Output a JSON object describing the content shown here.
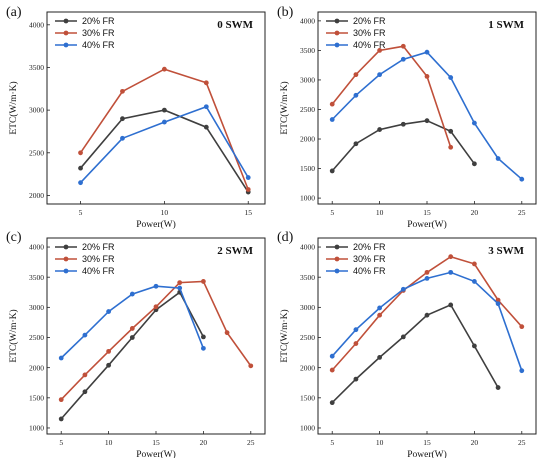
{
  "colors": {
    "s20": "#3f3f3f",
    "s30": "#c0503a",
    "s40": "#2e6fd0",
    "axis": "#222222"
  },
  "chart_data": [
    {
      "type": "line",
      "panel_label": "(a)",
      "title": "0 SWM",
      "xlabel": "Power(W)",
      "ylabel": "ETC(W/m·K)",
      "xlim": [
        3,
        16
      ],
      "ylim": [
        1900,
        4150
      ],
      "xticks": [
        5,
        10,
        15
      ],
      "yticks": [
        2000,
        2500,
        3000,
        3500,
        4000
      ],
      "x": [
        5,
        7.5,
        10,
        12.5,
        15
      ],
      "legend_position": "top-left",
      "series": [
        {
          "name": "20% FR",
          "color_key": "s20",
          "values": [
            2320,
            2900,
            3000,
            2800,
            2040
          ]
        },
        {
          "name": "30% FR",
          "color_key": "s30",
          "values": [
            2500,
            3220,
            3480,
            3320,
            2070
          ]
        },
        {
          "name": "40% FR",
          "color_key": "s40",
          "values": [
            2150,
            2670,
            2860,
            3040,
            2210
          ]
        }
      ]
    },
    {
      "type": "line",
      "panel_label": "(b)",
      "title": "1 SWM",
      "xlabel": "Power(W)",
      "ylabel": "ETC(W/m·K)",
      "xlim": [
        3.5,
        26.5
      ],
      "ylim": [
        900,
        4150
      ],
      "xticks": [
        5,
        10,
        15,
        20,
        25
      ],
      "yticks": [
        1000,
        1500,
        2000,
        2500,
        3000,
        3500,
        4000
      ],
      "x": [
        5,
        7.5,
        10,
        12.5,
        15,
        17.5,
        20,
        22.5,
        25
      ],
      "legend_position": "top-left",
      "series": [
        {
          "name": "20% FR",
          "color_key": "s20",
          "values": [
            1460,
            1920,
            2160,
            2250,
            2310,
            2130,
            1580,
            null,
            null
          ]
        },
        {
          "name": "30% FR",
          "color_key": "s30",
          "values": [
            2590,
            3090,
            3500,
            3570,
            3060,
            1860,
            null,
            null,
            null
          ]
        },
        {
          "name": "40% FR",
          "color_key": "s40",
          "values": [
            2330,
            2740,
            3090,
            3350,
            3470,
            3040,
            2270,
            1670,
            1320
          ]
        }
      ]
    },
    {
      "type": "line",
      "panel_label": "(c)",
      "title": "2 SWM",
      "xlabel": "Power(W)",
      "ylabel": "ETC(W/m·K)",
      "xlim": [
        3.5,
        26.5
      ],
      "ylim": [
        900,
        4150
      ],
      "xticks": [
        5,
        10,
        15,
        20,
        25
      ],
      "yticks": [
        1000,
        1500,
        2000,
        2500,
        3000,
        3500,
        4000
      ],
      "x": [
        5,
        7.5,
        10,
        12.5,
        15,
        17.5,
        20,
        22.5,
        25
      ],
      "legend_position": "top-left",
      "series": [
        {
          "name": "20% FR",
          "color_key": "s20",
          "values": [
            1150,
            1600,
            2040,
            2500,
            2960,
            3250,
            2510,
            null,
            null
          ]
        },
        {
          "name": "30% FR",
          "color_key": "s30",
          "values": [
            1470,
            1880,
            2270,
            2650,
            3010,
            3410,
            3430,
            2580,
            2030
          ]
        },
        {
          "name": "40% FR",
          "color_key": "s40",
          "values": [
            2160,
            2540,
            2930,
            3220,
            3350,
            3320,
            2320,
            null,
            null
          ]
        }
      ]
    },
    {
      "type": "line",
      "panel_label": "(d)",
      "title": "3 SWM",
      "xlabel": "Power(W)",
      "ylabel": "ETC(W/m·K)",
      "xlim": [
        3.5,
        26.5
      ],
      "ylim": [
        900,
        4150
      ],
      "xticks": [
        5,
        10,
        15,
        20,
        25
      ],
      "yticks": [
        1000,
        1500,
        2000,
        2500,
        3000,
        3500,
        4000
      ],
      "x": [
        5,
        7.5,
        10,
        12.5,
        15,
        17.5,
        20,
        22.5,
        25
      ],
      "legend_position": "top-left",
      "series": [
        {
          "name": "20% FR",
          "color_key": "s20",
          "values": [
            1420,
            1810,
            2170,
            2510,
            2870,
            3040,
            2360,
            1670,
            null
          ]
        },
        {
          "name": "30% FR",
          "color_key": "s30",
          "values": [
            1960,
            2400,
            2870,
            3280,
            3580,
            3840,
            3720,
            3120,
            2680
          ]
        },
        {
          "name": "40% FR",
          "color_key": "s40",
          "values": [
            2190,
            2630,
            2990,
            3300,
            3480,
            3580,
            3430,
            3060,
            1950
          ]
        }
      ]
    }
  ]
}
